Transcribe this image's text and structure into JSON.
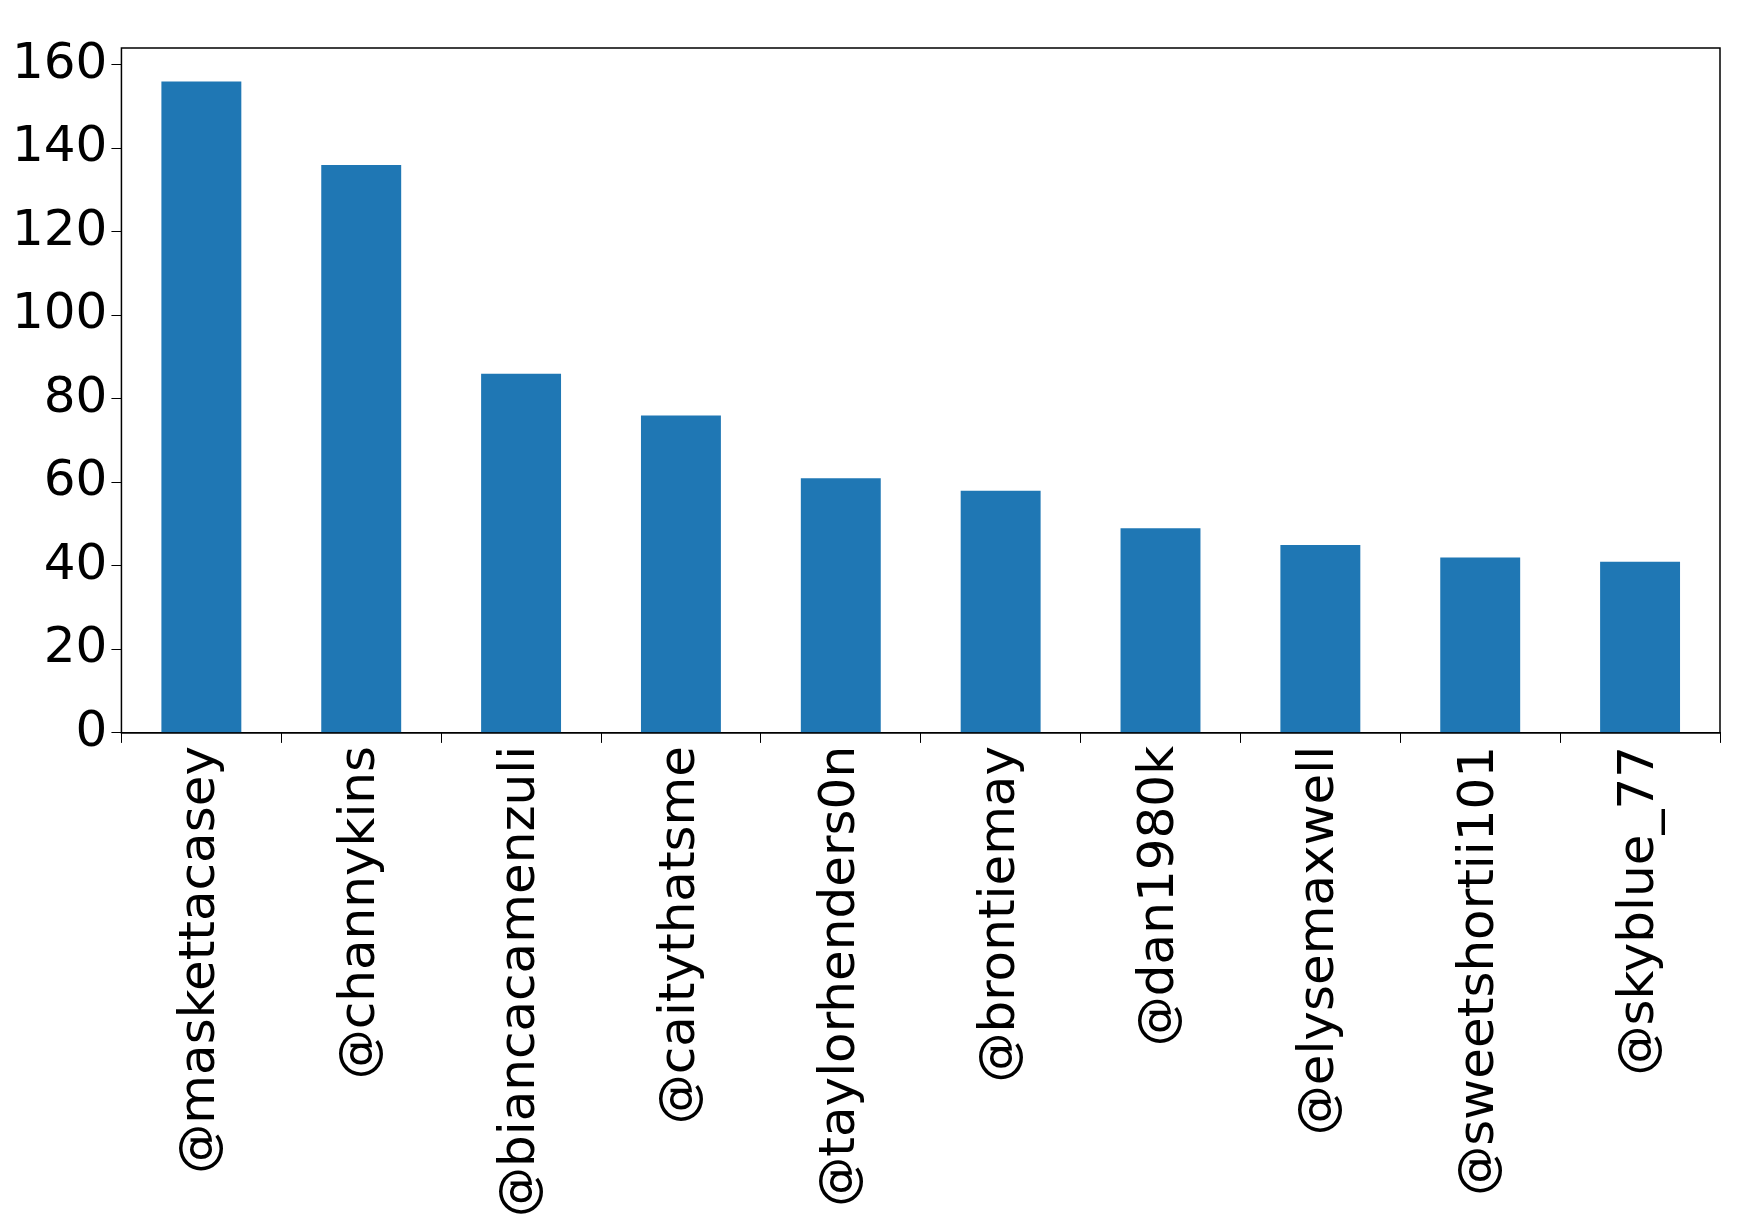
{
  "chart_data": {
    "type": "bar",
    "categories": [
      "@maskettacasey",
      "@channykins",
      "@biancacamenzuli",
      "@caitythatsme",
      "@taylorhenders0n",
      "@brontiemay",
      "@dan1980k",
      "@elysemaxwell",
      "@sweetshortii101",
      "@skyblue_77"
    ],
    "values": [
      156,
      136,
      86,
      76,
      61,
      58,
      49,
      45,
      42,
      41
    ],
    "color": "#1f77b4",
    "ylim": [
      0,
      164
    ],
    "yticks": [
      0,
      20,
      40,
      60,
      80,
      100,
      120,
      140,
      160
    ],
    "grid": false
  }
}
